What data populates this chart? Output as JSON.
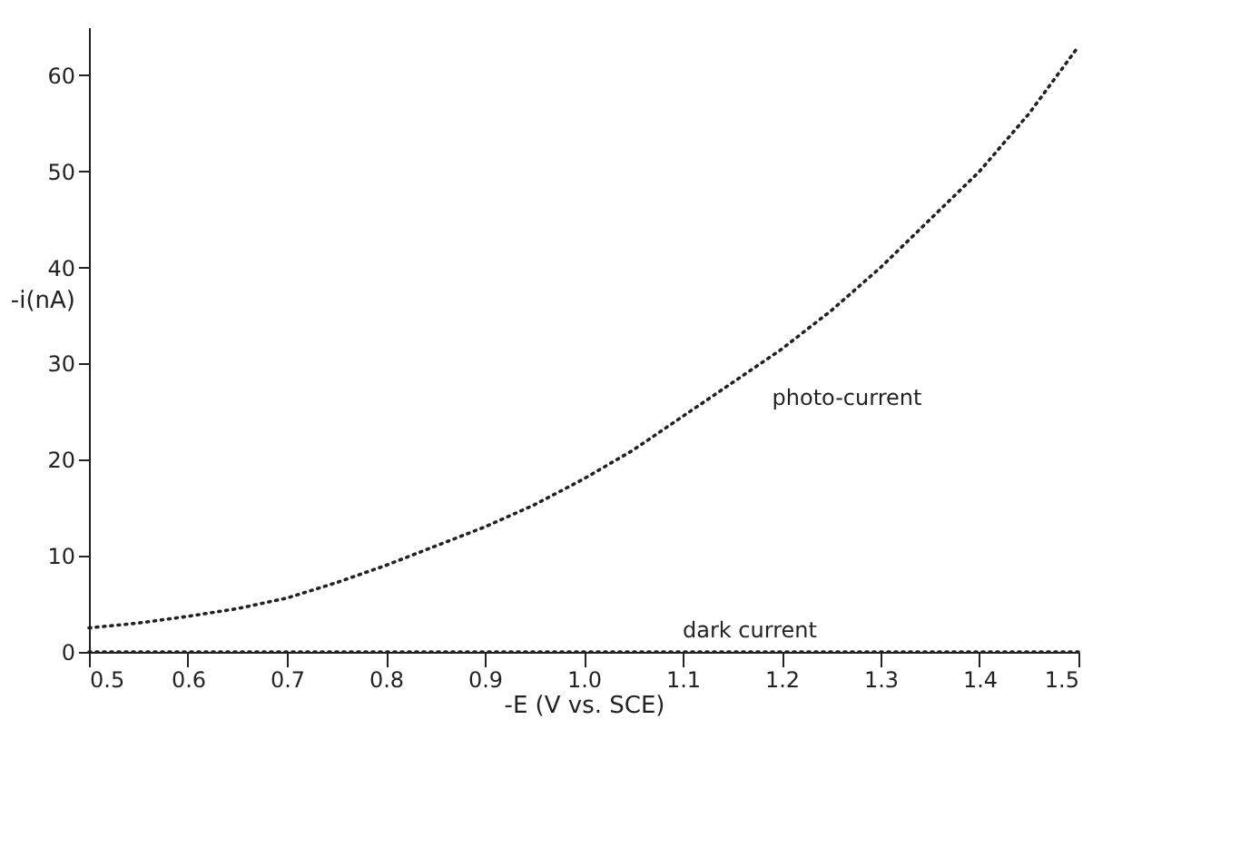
{
  "chart_data": {
    "type": "line",
    "xlabel": "-E (V vs. SCE)",
    "ylabel": "-i(nA)",
    "xlim": [
      0.5,
      1.5
    ],
    "xticks": [
      0.5,
      0.6,
      0.7,
      0.8,
      0.9,
      {
        "value": 1,
        "label": "1.0"
      },
      1.1,
      1.2,
      1.3,
      1.4,
      1.5
    ],
    "ylim": [
      0,
      65
    ],
    "yticks": [
      0,
      10,
      20,
      30,
      40,
      50,
      60
    ],
    "grid": false,
    "marker": "none",
    "line_style": "dotted",
    "series": [
      {
        "color": "#222222",
        "x": [
          0.5,
          0.55,
          0.6,
          0.65,
          0.7,
          0.75,
          0.8,
          0.85,
          0.9,
          0.95,
          1.0,
          1.05,
          1.1,
          1.15,
          1.2,
          1.25,
          1.3,
          1.35,
          1.4,
          1.45,
          1.5
        ],
        "values": [
          2.5,
          3,
          3.7,
          4.5,
          5.6,
          7.2,
          9,
          11,
          13,
          15.3,
          18,
          21,
          24.5,
          28,
          31.5,
          35.5,
          40,
          45,
          50,
          56,
          63
        ]
      },
      {
        "color": "#222222",
        "x": [
          0.5,
          0.6,
          0.7,
          0.8,
          0.9,
          1.0,
          1.1,
          1.2,
          1.3,
          1.4,
          1.5
        ],
        "values": [
          0,
          0,
          0,
          0,
          0,
          0,
          0,
          0,
          0,
          0,
          0
        ]
      }
    ],
    "annotations": [
      "photo-current",
      "dark current"
    ]
  }
}
